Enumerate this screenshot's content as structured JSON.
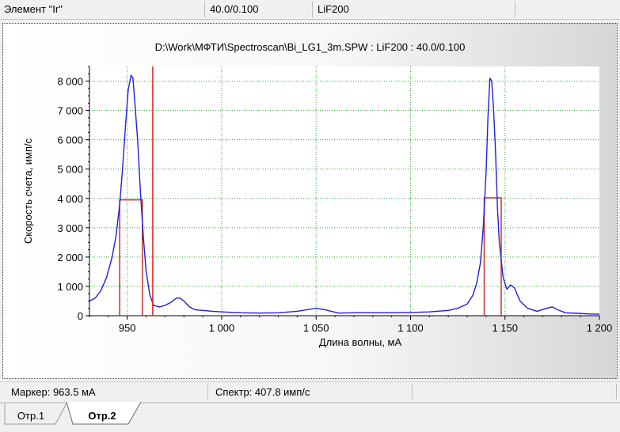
{
  "topbar": {
    "element_label": "Элемент \"Ir\"",
    "position_value": "40.0/0.100",
    "crystal": "LiF200"
  },
  "chart_title": "D:\\Work\\МФТИ\\Spectroscan\\Bi_LG1_3m.SPW : LiF200 : 40.0/0.100",
  "statusbar": {
    "marker": "Маркер: 963.5 мА",
    "spectrum": "Спектр:  407.8 имп/с"
  },
  "tabs": [
    {
      "label": "Отр.1",
      "active": false
    },
    {
      "label": "Отр.2",
      "active": true
    }
  ],
  "colors": {
    "spectrum_line": "#1f1fe0",
    "marker_line": "#e0201f",
    "window_line": "#c83030",
    "grid": "#3aa83a"
  },
  "chart_data": {
    "type": "line",
    "xlabel": "Длина волны, мА",
    "ylabel": "Скорость счета, имп/с",
    "xlim": [
      930,
      1200
    ],
    "ylim": [
      0,
      8500
    ],
    "x_ticks": [
      950,
      1000,
      1050,
      1100,
      1150,
      1200
    ],
    "x_tick_labels": [
      "950",
      "1 000",
      "1 050",
      "1 100",
      "1 150",
      "1 200"
    ],
    "y_ticks": [
      0,
      1000,
      2000,
      3000,
      4000,
      5000,
      6000,
      7000,
      8000
    ],
    "y_tick_labels": [
      "0",
      "1 000",
      "2 000",
      "3 000",
      "4 000",
      "5 000",
      "6 000",
      "7 000",
      "8 000"
    ],
    "grid": true,
    "marker_x": 963.5,
    "series": [
      {
        "x": [
          930,
          933,
          936,
          939,
          942,
          944,
          946,
          947.5,
          949,
          950.5,
          952,
          953,
          954,
          955.5,
          957,
          958.5,
          960,
          962,
          964,
          967,
          970,
          973,
          976,
          978,
          980,
          983,
          986,
          990,
          995,
          1000,
          1010,
          1020,
          1030,
          1040,
          1050,
          1055,
          1058,
          1062,
          1070,
          1080,
          1090,
          1100,
          1110,
          1120,
          1125,
          1130,
          1133,
          1135,
          1137,
          1138.5,
          1140,
          1141,
          1142,
          1143,
          1144,
          1145,
          1146,
          1147,
          1149,
          1151,
          1153,
          1155,
          1158,
          1162,
          1167,
          1172,
          1175,
          1178,
          1182,
          1188,
          1195,
          1200
        ],
        "y": [
          500,
          600,
          850,
          1300,
          2000,
          2700,
          3800,
          5000,
          6400,
          7700,
          8200,
          8100,
          7300,
          6000,
          4200,
          2700,
          1500,
          700,
          350,
          300,
          350,
          450,
          600,
          600,
          500,
          300,
          200,
          180,
          150,
          130,
          100,
          90,
          100,
          150,
          250,
          200,
          150,
          90,
          100,
          100,
          100,
          110,
          130,
          180,
          250,
          400,
          700,
          1100,
          1800,
          3000,
          4900,
          6800,
          8100,
          8000,
          7000,
          5600,
          3700,
          2500,
          1300,
          900,
          1050,
          950,
          500,
          250,
          150,
          250,
          300,
          200,
          100,
          80,
          60,
          50
        ]
      }
    ],
    "windows": [
      {
        "x_start": 946,
        "x_end": 958,
        "level": 3950
      },
      {
        "x_start": 1139,
        "x_end": 1148,
        "level": 4020
      }
    ]
  }
}
